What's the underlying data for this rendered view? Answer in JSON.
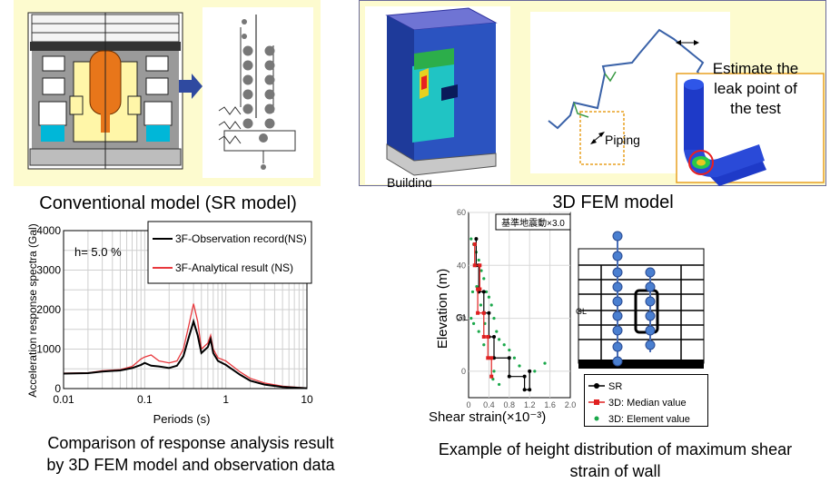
{
  "sr_model": {
    "caption": "Conventional model (SR model)"
  },
  "fem_model": {
    "caption": "3D FEM model",
    "building_label": "Building",
    "piping_label": "Piping",
    "callout": [
      "Estimate the",
      "leak point of",
      "the test"
    ]
  },
  "response_chart": {
    "caption_lines": [
      "Comparison of response analysis result",
      "by 3D FEM model and observation data"
    ]
  },
  "shear_chart": {
    "caption_lines": [
      "Example of height distribution of maximum shear",
      "strain of wall"
    ],
    "inset_label": "基準地震動×3.0",
    "gl_label": "GL",
    "gl_label_right": "GL"
  },
  "colors": {
    "panel_bg": "#fdfbcf",
    "observation": "#000000",
    "analytical": "#e8383d",
    "sr": "#000000",
    "median": "#e02020",
    "element": "#1aa84a"
  },
  "chart_data": [
    {
      "type": "line",
      "title": "",
      "xlabel": "Periods (s)",
      "ylabel": "Acceleration response spectra (Gal)",
      "xscale": "log",
      "xlim": [
        0.01,
        10
      ],
      "ylim": [
        0,
        4000
      ],
      "xticks": [
        "0.01",
        "0.1",
        "1",
        "10"
      ],
      "yticks": [
        "0",
        "1000",
        "2000",
        "3000",
        "4000"
      ],
      "annotation": "h= 5.0 %",
      "grid": true,
      "legend_position": "top-right",
      "series": [
        {
          "name": "3F-Observation record(NS)",
          "x": [
            0.01,
            0.02,
            0.03,
            0.05,
            0.07,
            0.09,
            0.1,
            0.12,
            0.15,
            0.2,
            0.25,
            0.3,
            0.35,
            0.4,
            0.45,
            0.5,
            0.6,
            0.65,
            0.7,
            0.8,
            1,
            1.5,
            2,
            3,
            5,
            10
          ],
          "y": [
            380,
            390,
            430,
            460,
            520,
            600,
            650,
            580,
            560,
            520,
            580,
            820,
            1300,
            1700,
            1350,
            900,
            1050,
            1250,
            900,
            700,
            600,
            350,
            200,
            100,
            40,
            10
          ]
        },
        {
          "name": "3F-Analytical result (NS)",
          "x": [
            0.01,
            0.02,
            0.03,
            0.05,
            0.07,
            0.09,
            0.1,
            0.12,
            0.15,
            0.2,
            0.25,
            0.3,
            0.35,
            0.4,
            0.45,
            0.5,
            0.6,
            0.65,
            0.7,
            0.8,
            1,
            1.5,
            2,
            3,
            5,
            10
          ],
          "y": [
            390,
            400,
            450,
            480,
            560,
            750,
            800,
            850,
            700,
            650,
            700,
            1000,
            1600,
            2150,
            1700,
            1000,
            1150,
            1350,
            1000,
            780,
            700,
            420,
            260,
            140,
            60,
            15
          ]
        }
      ]
    },
    {
      "type": "scatter",
      "title": "",
      "xlabel": "Shear strain(×10⁻³)",
      "ylabel": "Elevation (m)",
      "xlim": [
        0,
        2.0
      ],
      "ylim": [
        -10,
        60
      ],
      "xticks": [
        "0",
        "0.4",
        "0.8",
        "1.2",
        "1.6",
        "2.0"
      ],
      "yticks": [
        "0",
        "20",
        "40",
        "60"
      ],
      "grid": true,
      "legend_position": "bottom-right",
      "series": [
        {
          "name": "SR",
          "style": "line-marker",
          "x": [
            0.15,
            0.15,
            0.2,
            0.2,
            0.3,
            0.3,
            0.4,
            0.4,
            0.5,
            0.5,
            0.8,
            0.8,
            1.1,
            1.1,
            1.2,
            1.2
          ],
          "y": [
            50,
            40,
            40,
            30,
            30,
            22,
            22,
            13,
            13,
            5,
            5,
            -2,
            -2,
            -7,
            -7,
            0
          ]
        },
        {
          "name": "3D: Median value",
          "style": "line-marker",
          "x": [
            0.12,
            0.12,
            0.22,
            0.22,
            0.18,
            0.18,
            0.3,
            0.3,
            0.38,
            0.38,
            0.45,
            0.45
          ],
          "y": [
            48,
            40,
            40,
            31,
            31,
            22,
            22,
            13,
            13,
            5,
            5,
            -2
          ]
        },
        {
          "name": "3D: Element value",
          "style": "scatter",
          "x": [
            0.05,
            0.1,
            0.15,
            0.2,
            0.25,
            0.3,
            0.35,
            0.4,
            0.45,
            0.5,
            0.55,
            0.6,
            0.7,
            0.8,
            0.9,
            1.0,
            1.3,
            1.5,
            0.05,
            0.1,
            0.2,
            0.3,
            0.4,
            0.5,
            0.6,
            0.08,
            0.16,
            0.24,
            0.32,
            0.48
          ],
          "y": [
            50,
            48,
            45,
            42,
            38,
            35,
            30,
            28,
            25,
            20,
            15,
            12,
            10,
            8,
            5,
            2,
            0,
            3,
            20,
            18,
            15,
            10,
            5,
            0,
            -5,
            30,
            32,
            25,
            18,
            -3
          ]
        }
      ]
    }
  ]
}
